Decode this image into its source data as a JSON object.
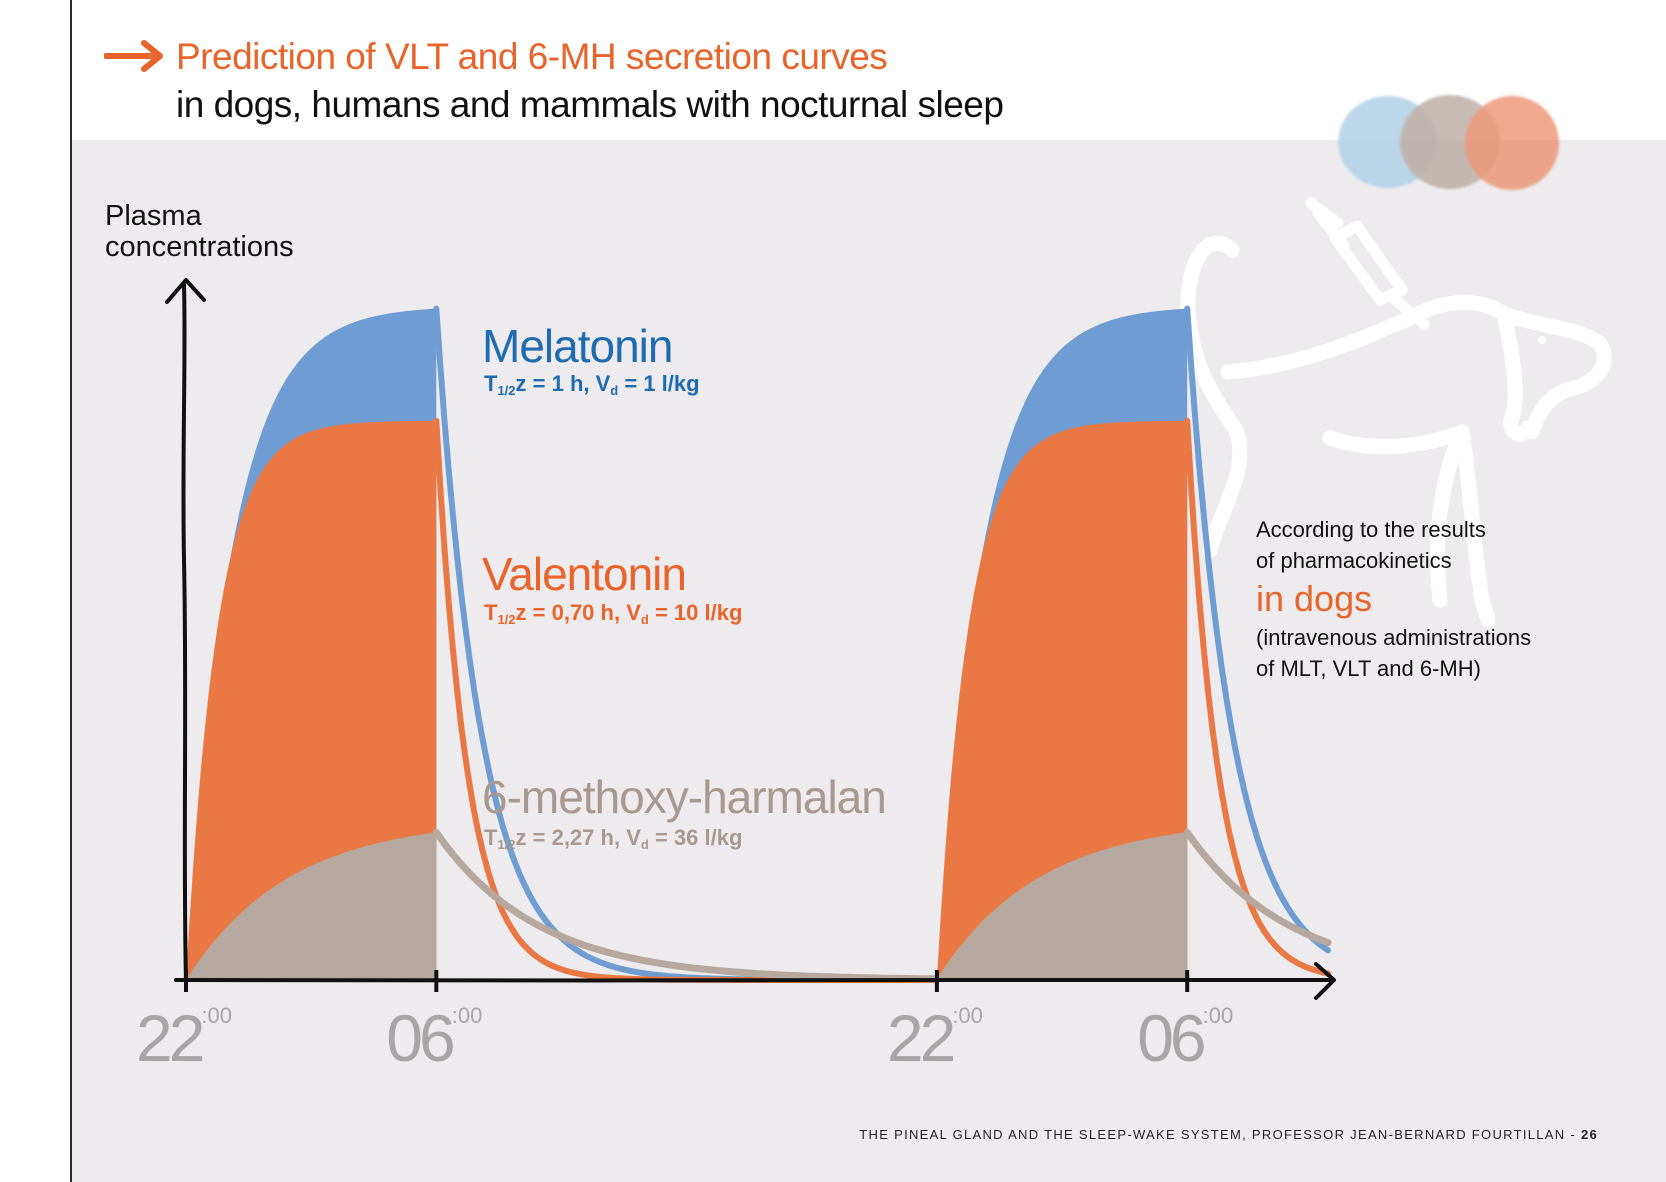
{
  "header": {
    "title_line1": "Prediction of VLT and 6-MH secretion curves",
    "title_line2": "in dogs, humans and mammals with nocturnal sleep"
  },
  "colors": {
    "melatonin": "#6f9dd3",
    "valentonin": "#e97844",
    "methoxy": "#b7a89f",
    "accent": "#e8642a",
    "panel": "#edebed"
  },
  "chart_data": {
    "type": "area",
    "title": "Prediction of VLT and 6-MH secretion curves",
    "ylabel_lines": [
      "Plasma",
      "concentrations"
    ],
    "xlabel": "",
    "x_unit": "hours after 22:00",
    "xlim": [
      0,
      36.5
    ],
    "ylim": [
      0,
      1.0
    ],
    "ticks": [
      {
        "x": 0,
        "hour": "22",
        "min": ":00"
      },
      {
        "x": 8,
        "hour": "06",
        "min": ":00"
      },
      {
        "x": 24,
        "hour": "22",
        "min": ":00"
      },
      {
        "x": 32,
        "hour": "06",
        "min": ":00"
      }
    ],
    "secretion_windows": [
      [
        0,
        8
      ],
      [
        24,
        32
      ]
    ],
    "series": [
      {
        "key": "melatonin",
        "name": "Melatonin",
        "param_text": "T1/2z = 1 h, Vd = 1 l/kg",
        "param_parts": {
          "t": "T",
          "t_sub": "1/2",
          "z_eq": "z = 1 h, V",
          "v_sub": "d",
          "rest": " = 1 l/kg"
        },
        "half_life_h": 1.0,
        "vd_l_per_kg": 1,
        "plateau": 1.0,
        "color": "#6f9dd3",
        "label_color": "#1f6bb0"
      },
      {
        "key": "valentonin",
        "name": "Valentonin",
        "param_text": "T1/2z = 0,70 h, Vd = 10 l/kg",
        "param_parts": {
          "t": "T",
          "t_sub": "1/2",
          "z_eq": "z = 0,70 h, V",
          "v_sub": "d",
          "rest": " = 10 l/kg"
        },
        "half_life_h": 0.7,
        "vd_l_per_kg": 10,
        "plateau": 0.83,
        "color": "#e97844",
        "label_color": "#e8642a"
      },
      {
        "key": "methoxy",
        "name": "6-methoxy-harmalan",
        "param_text": "T1/2z = 2,27 h, Vd = 36 l/kg",
        "param_parts": {
          "t": "T",
          "t_sub": "1/2",
          "z_eq": "z = 2,27 h, V",
          "v_sub": "d",
          "rest": " = 36 l/kg"
        },
        "half_life_h": 2.27,
        "vd_l_per_kg": 36,
        "plateau": 0.24,
        "color": "#b7a89f",
        "label_color": "#a79990"
      }
    ],
    "annotation": {
      "line1": "According to the results",
      "line2": "of pharmacokinetics",
      "highlight": "in dogs",
      "line3": "(intravenous administrations",
      "line4": "of MLT, VLT and 6-MH)"
    }
  },
  "footer": {
    "text": "THE PINEAL GLAND AND THE SLEEP-WAKE SYSTEM, PROFESSOR JEAN-BERNARD FOURTILLAN -",
    "page": "26"
  }
}
